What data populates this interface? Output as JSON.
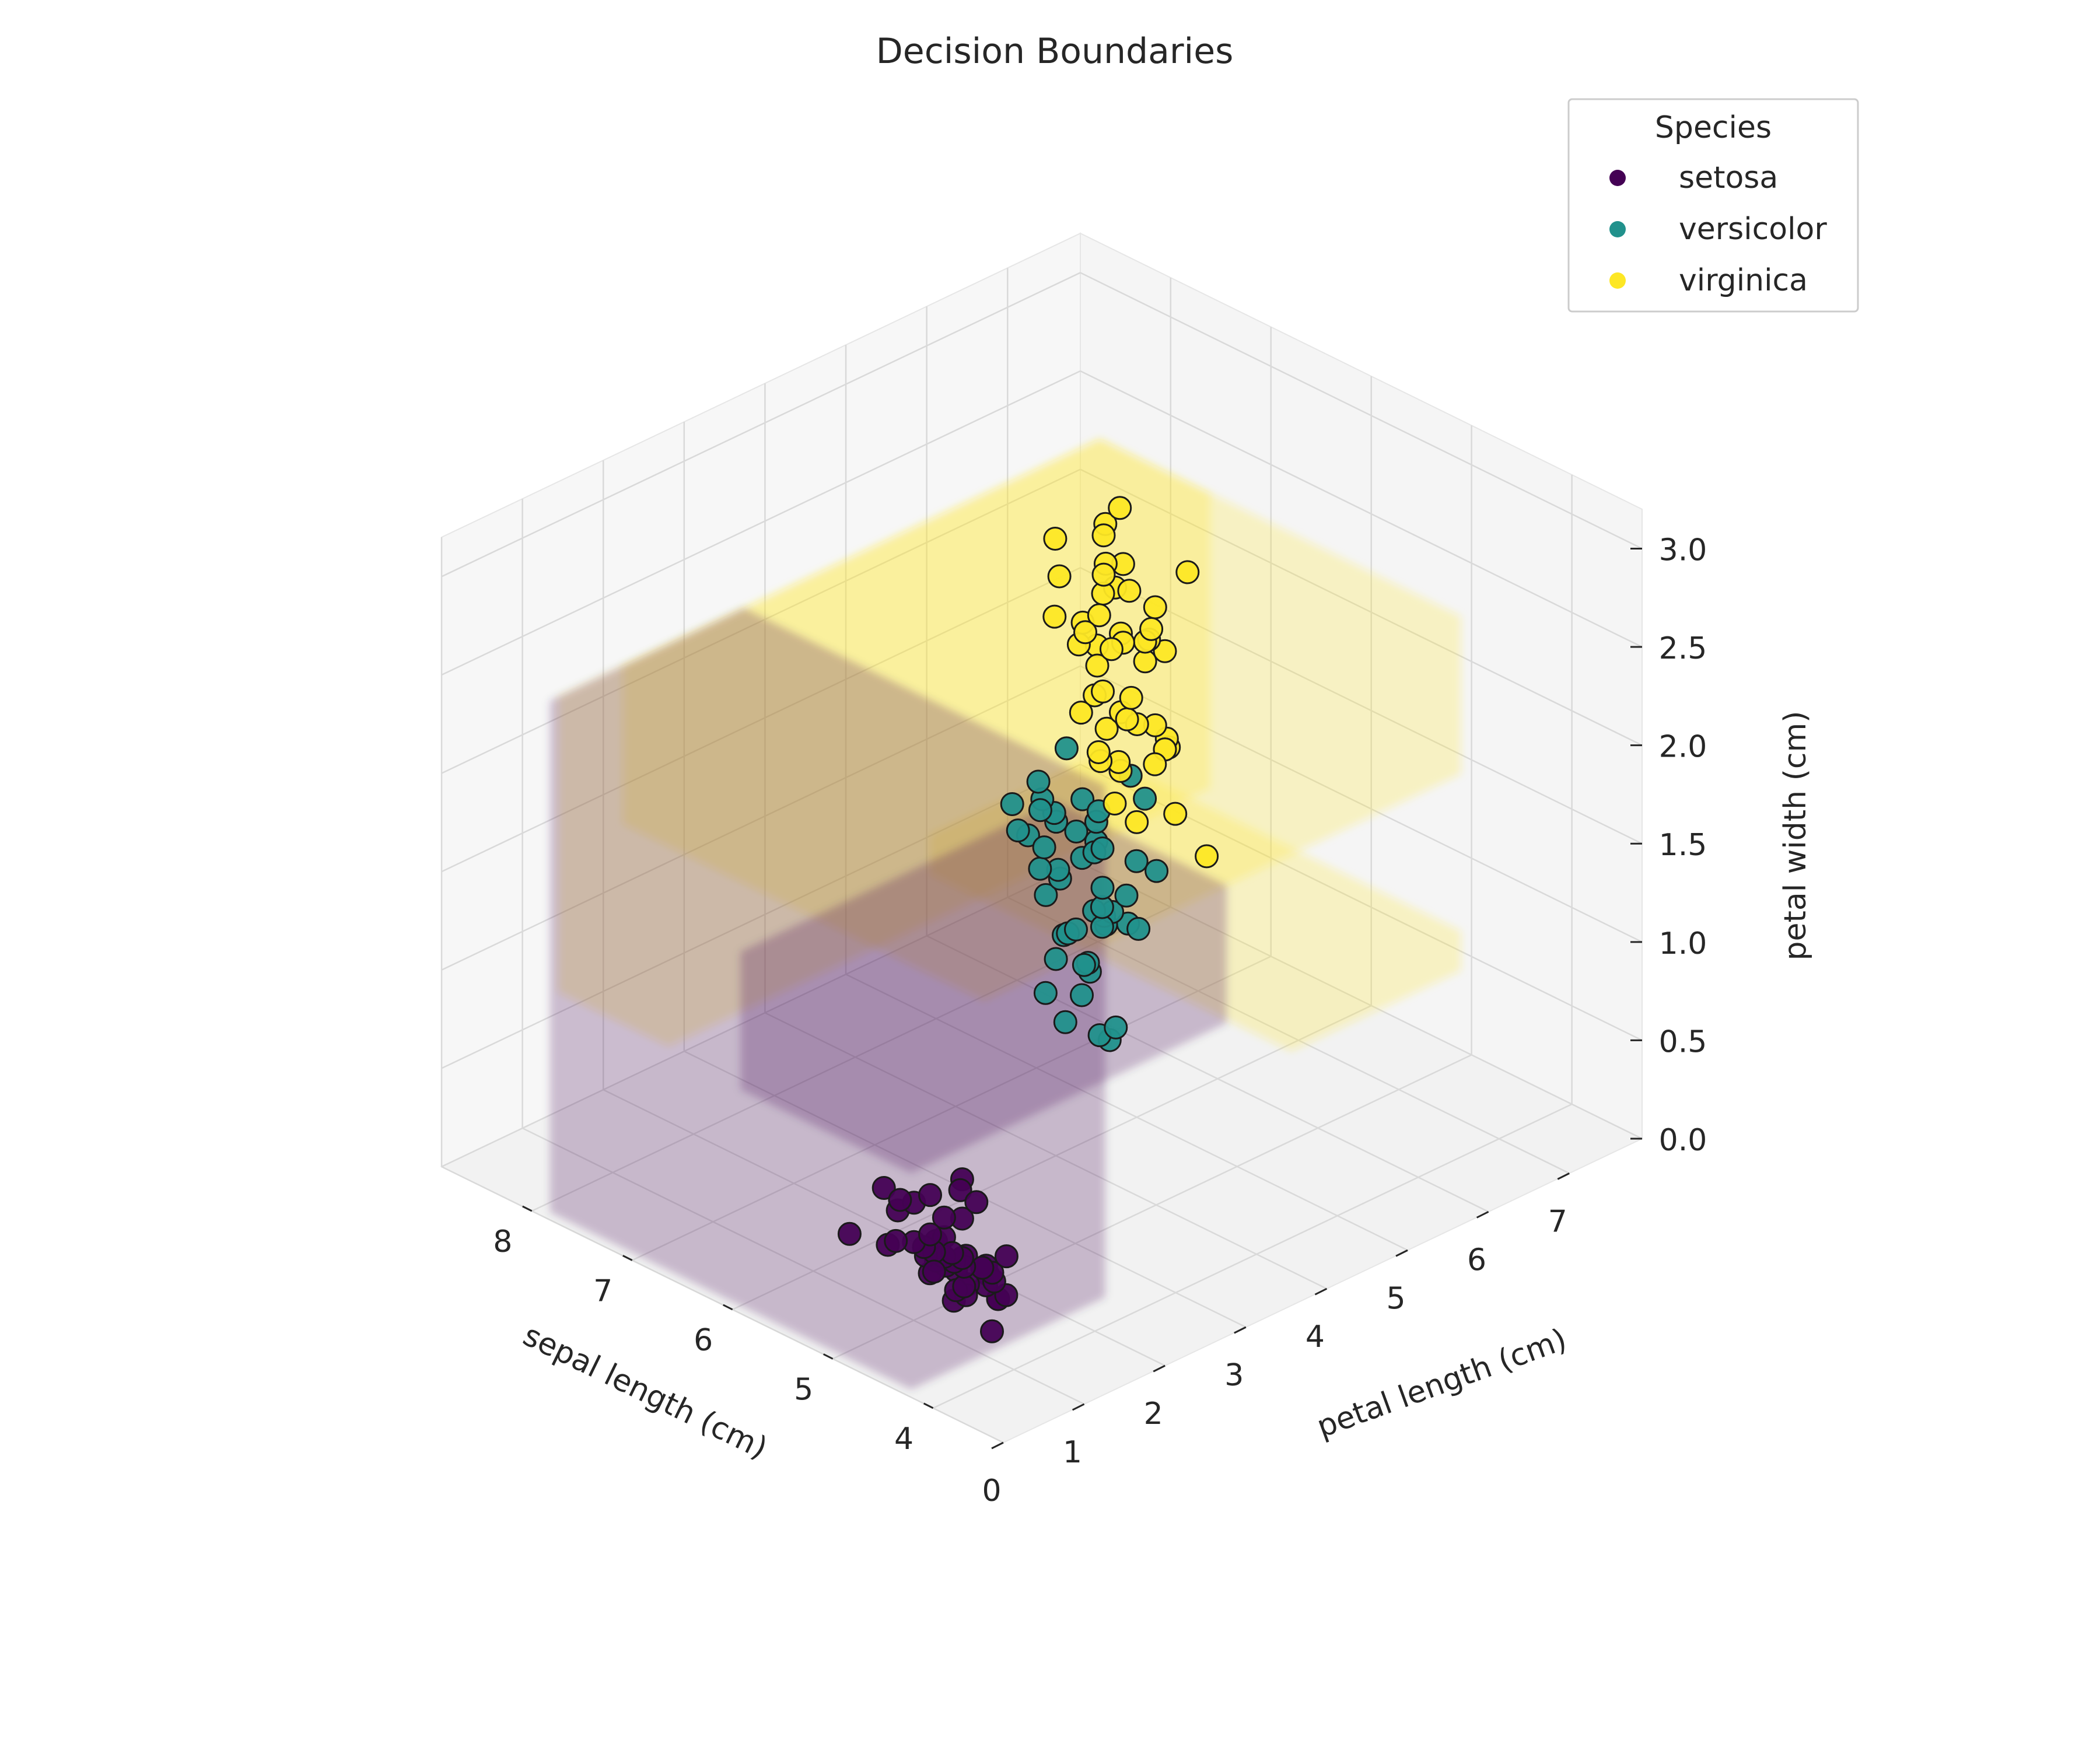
{
  "chart_data": {
    "type": "scatter",
    "projection": "3d",
    "title": "Decision Boundaries",
    "xlabel": "sepal length (cm)",
    "ylabel": "petal length (cm)",
    "zlabel": "petal width (cm)",
    "xlim": [
      3.3,
      8.9
    ],
    "ylim": [
      0.0,
      7.9
    ],
    "zlim": [
      0.0,
      3.2
    ],
    "x_ticks": [
      "4",
      "5",
      "6",
      "7",
      "8"
    ],
    "y_ticks": [
      "0",
      "1",
      "2",
      "3",
      "4",
      "5",
      "6",
      "7"
    ],
    "z_ticks": [
      "0.0",
      "0.5",
      "1.0",
      "1.5",
      "2.0",
      "2.5",
      "3.0"
    ],
    "grid": true,
    "legend": {
      "title": "Species",
      "placement": "top-right",
      "entries": [
        "setosa",
        "versicolor",
        "virginica"
      ]
    },
    "colors": {
      "setosa": "#440154",
      "versicolor": "#21918c",
      "virginica": "#fde725"
    },
    "decision_regions": [
      {
        "class": "virginica",
        "x": [
          4.3,
          7.9
        ],
        "y": [
          4.8,
          6.9
        ],
        "z": [
          0.8,
          1.0
        ]
      },
      {
        "class": "virginica",
        "x": [
          6.8,
          7.9
        ],
        "y": [
          0.2,
          6.9
        ],
        "z": [
          1.1,
          2.6
        ]
      },
      {
        "class": "virginica",
        "x": [
          4.3,
          7.9
        ],
        "y": [
          1.0,
          6.9
        ],
        "z": [
          1.8,
          2.6
        ]
      },
      {
        "class": "setosa",
        "x": [
          4.3,
          7.9
        ],
        "y": [
          0.1,
          2.5
        ],
        "z": [
          0.0,
          2.6
        ]
      },
      {
        "class": "setosa",
        "x": [
          4.3,
          6.0
        ],
        "y": [
          0.1,
          4.0
        ],
        "z": [
          1.1,
          1.8
        ]
      }
    ],
    "series": [
      {
        "name": "setosa",
        "points": [
          [
            5.1,
            1.4,
            0.2
          ],
          [
            4.9,
            1.4,
            0.2
          ],
          [
            4.7,
            1.3,
            0.2
          ],
          [
            4.6,
            1.5,
            0.2
          ],
          [
            5.0,
            1.4,
            0.2
          ],
          [
            5.4,
            1.7,
            0.4
          ],
          [
            4.6,
            1.4,
            0.3
          ],
          [
            5.0,
            1.5,
            0.2
          ],
          [
            4.4,
            1.4,
            0.2
          ],
          [
            4.9,
            1.5,
            0.1
          ],
          [
            5.4,
            1.5,
            0.2
          ],
          [
            4.8,
            1.6,
            0.2
          ],
          [
            4.8,
            1.4,
            0.1
          ],
          [
            4.3,
            1.1,
            0.1
          ],
          [
            5.8,
            1.2,
            0.2
          ],
          [
            5.7,
            1.5,
            0.4
          ],
          [
            5.4,
            1.3,
            0.4
          ],
          [
            5.1,
            1.4,
            0.3
          ],
          [
            5.7,
            1.7,
            0.3
          ],
          [
            5.1,
            1.5,
            0.3
          ],
          [
            5.4,
            1.7,
            0.2
          ],
          [
            5.1,
            1.5,
            0.4
          ],
          [
            4.6,
            1.0,
            0.2
          ],
          [
            5.1,
            1.7,
            0.5
          ],
          [
            4.8,
            1.9,
            0.2
          ],
          [
            5.0,
            1.6,
            0.2
          ],
          [
            5.0,
            1.6,
            0.4
          ],
          [
            5.2,
            1.5,
            0.2
          ],
          [
            5.2,
            1.4,
            0.2
          ],
          [
            4.7,
            1.6,
            0.2
          ],
          [
            4.8,
            1.6,
            0.2
          ],
          [
            5.4,
            1.5,
            0.4
          ],
          [
            5.2,
            1.5,
            0.1
          ],
          [
            5.5,
            1.4,
            0.2
          ],
          [
            4.9,
            1.5,
            0.2
          ],
          [
            5.0,
            1.2,
            0.2
          ],
          [
            5.5,
            1.3,
            0.2
          ],
          [
            4.9,
            1.4,
            0.1
          ],
          [
            4.4,
            1.3,
            0.2
          ],
          [
            5.1,
            1.5,
            0.2
          ],
          [
            5.0,
            1.3,
            0.3
          ],
          [
            4.5,
            1.3,
            0.3
          ],
          [
            4.4,
            1.3,
            0.2
          ],
          [
            5.0,
            1.6,
            0.6
          ],
          [
            5.1,
            1.9,
            0.4
          ],
          [
            4.8,
            1.4,
            0.3
          ],
          [
            5.1,
            1.6,
            0.2
          ],
          [
            4.6,
            1.4,
            0.2
          ],
          [
            5.3,
            1.5,
            0.2
          ],
          [
            5.0,
            1.4,
            0.2
          ]
        ]
      },
      {
        "name": "versicolor",
        "points": [
          [
            7.0,
            4.7,
            1.4
          ],
          [
            6.4,
            4.5,
            1.5
          ],
          [
            6.9,
            4.9,
            1.5
          ],
          [
            5.5,
            4.0,
            1.3
          ],
          [
            6.5,
            4.6,
            1.5
          ],
          [
            5.7,
            4.5,
            1.3
          ],
          [
            6.3,
            4.7,
            1.6
          ],
          [
            4.9,
            3.3,
            1.0
          ],
          [
            6.6,
            4.6,
            1.3
          ],
          [
            5.2,
            3.9,
            1.4
          ],
          [
            5.0,
            3.5,
            1.0
          ],
          [
            5.9,
            4.2,
            1.5
          ],
          [
            6.0,
            4.0,
            1.0
          ],
          [
            6.1,
            4.7,
            1.4
          ],
          [
            5.6,
            3.6,
            1.3
          ],
          [
            6.7,
            4.4,
            1.4
          ],
          [
            5.6,
            4.5,
            1.5
          ],
          [
            5.8,
            4.1,
            1.0
          ],
          [
            6.2,
            4.5,
            1.5
          ],
          [
            5.6,
            3.9,
            1.1
          ],
          [
            5.9,
            4.8,
            1.8
          ],
          [
            6.1,
            4.0,
            1.3
          ],
          [
            6.3,
            4.9,
            1.5
          ],
          [
            6.1,
            4.7,
            1.2
          ],
          [
            6.4,
            4.3,
            1.3
          ],
          [
            6.6,
            4.4,
            1.4
          ],
          [
            6.8,
            4.8,
            1.4
          ],
          [
            6.7,
            5.0,
            1.7
          ],
          [
            6.0,
            4.5,
            1.5
          ],
          [
            5.7,
            3.5,
            1.0
          ],
          [
            5.5,
            3.8,
            1.1
          ],
          [
            5.5,
            3.7,
            1.0
          ],
          [
            5.8,
            3.9,
            1.2
          ],
          [
            6.0,
            5.1,
            1.6
          ],
          [
            5.4,
            4.5,
            1.5
          ],
          [
            6.0,
            4.5,
            1.6
          ],
          [
            6.7,
            4.7,
            1.5
          ],
          [
            6.3,
            4.4,
            1.3
          ],
          [
            5.6,
            4.1,
            1.3
          ],
          [
            5.5,
            4.0,
            1.3
          ],
          [
            5.5,
            4.4,
            1.2
          ],
          [
            6.1,
            4.6,
            1.4
          ],
          [
            5.8,
            4.0,
            1.2
          ],
          [
            5.0,
            3.3,
            1.0
          ],
          [
            5.6,
            4.2,
            1.3
          ],
          [
            5.7,
            4.2,
            1.2
          ],
          [
            5.7,
            4.2,
            1.3
          ],
          [
            6.2,
            4.3,
            1.3
          ],
          [
            5.1,
            3.0,
            1.1
          ],
          [
            5.7,
            4.1,
            1.3
          ]
        ]
      },
      {
        "name": "virginica",
        "points": [
          [
            6.3,
            6.0,
            2.5
          ],
          [
            5.8,
            5.1,
            1.9
          ],
          [
            7.1,
            5.9,
            2.1
          ],
          [
            6.3,
            5.6,
            1.8
          ],
          [
            6.5,
            5.8,
            2.2
          ],
          [
            7.6,
            6.6,
            2.1
          ],
          [
            4.9,
            4.5,
            1.7
          ],
          [
            7.3,
            6.3,
            1.8
          ],
          [
            6.7,
            5.8,
            1.8
          ],
          [
            7.2,
            6.1,
            2.5
          ],
          [
            6.5,
            5.1,
            2.0
          ],
          [
            6.4,
            5.3,
            1.9
          ],
          [
            6.8,
            5.5,
            2.1
          ],
          [
            5.7,
            5.0,
            2.0
          ],
          [
            5.8,
            5.1,
            2.4
          ],
          [
            6.4,
            5.3,
            2.3
          ],
          [
            6.5,
            5.5,
            1.8
          ],
          [
            7.7,
            6.7,
            2.2
          ],
          [
            7.7,
            6.9,
            2.3
          ],
          [
            6.0,
            5.0,
            1.5
          ],
          [
            6.9,
            5.7,
            2.3
          ],
          [
            5.6,
            4.9,
            2.0
          ],
          [
            7.7,
            6.7,
            2.0
          ],
          [
            6.3,
            4.9,
            1.8
          ],
          [
            6.7,
            5.7,
            2.1
          ],
          [
            7.2,
            6.0,
            1.8
          ],
          [
            6.2,
            4.8,
            1.8
          ],
          [
            6.1,
            4.9,
            1.8
          ],
          [
            6.4,
            5.6,
            2.1
          ],
          [
            7.2,
            5.8,
            1.6
          ],
          [
            7.4,
            6.1,
            1.9
          ],
          [
            7.9,
            6.4,
            2.0
          ],
          [
            6.4,
            5.6,
            2.2
          ],
          [
            6.3,
            5.1,
            1.5
          ],
          [
            6.1,
            5.6,
            1.4
          ],
          [
            7.7,
            6.1,
            2.3
          ],
          [
            6.3,
            5.6,
            2.4
          ],
          [
            6.4,
            5.5,
            1.8
          ],
          [
            6.0,
            4.8,
            1.8
          ],
          [
            6.9,
            5.4,
            2.1
          ],
          [
            6.7,
            5.6,
            2.4
          ],
          [
            6.9,
            5.1,
            2.3
          ],
          [
            5.8,
            5.1,
            1.9
          ],
          [
            6.8,
            5.9,
            2.3
          ],
          [
            6.7,
            5.7,
            2.5
          ],
          [
            6.7,
            5.2,
            2.3
          ],
          [
            6.3,
            5.0,
            1.9
          ],
          [
            6.5,
            5.2,
            2.0
          ],
          [
            6.2,
            5.4,
            2.3
          ],
          [
            5.9,
            5.1,
            1.8
          ]
        ]
      }
    ]
  }
}
